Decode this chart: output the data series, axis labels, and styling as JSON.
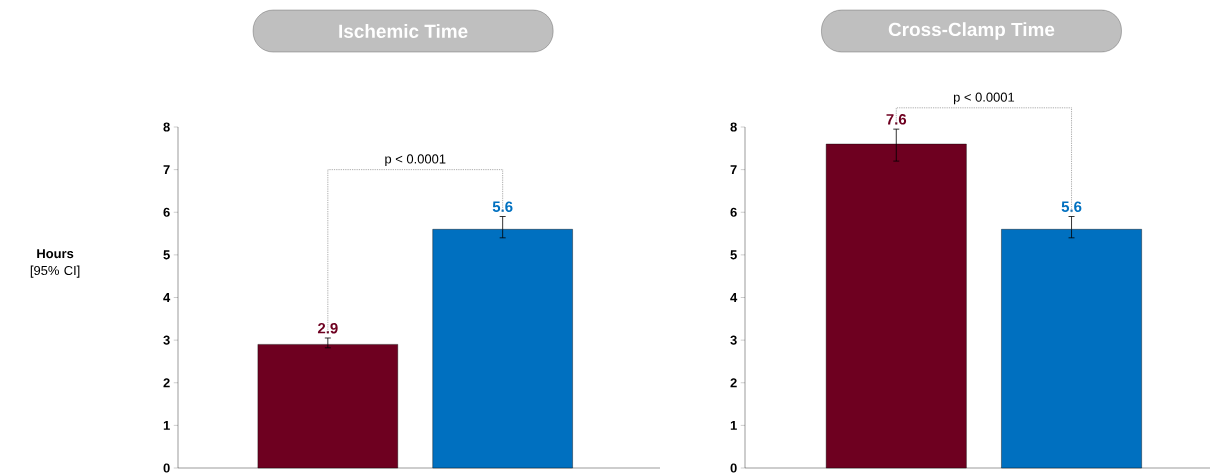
{
  "chart_data": [
    {
      "type": "bar",
      "title": "Ischemic Time",
      "ylabel": "**Hours** [95% CI]",
      "categories": [
        null,
        null
      ],
      "values": [
        2.9,
        5.6
      ],
      "colors": [
        "#6e0020",
        "#0070c0"
      ],
      "errors": [
        [
          2.82,
          3.05
        ],
        [
          5.4,
          5.9
        ]
      ],
      "ylim": [
        0,
        8
      ],
      "yticks": [
        0,
        1,
        2,
        3,
        4,
        5,
        6,
        7,
        8
      ],
      "data_labels": true,
      "annotations": [
        "p < 0.0001"
      ]
    },
    {
      "type": "bar",
      "title": "Cross-Clamp Time",
      "categories": [
        null,
        null
      ],
      "values": [
        7.6,
        5.6
      ],
      "colors": [
        "#6e0020",
        "#0070c0"
      ],
      "errors": [
        [
          7.2,
          7.95
        ],
        [
          5.4,
          5.9
        ]
      ],
      "ylim": [
        0,
        8
      ],
      "yticks": [
        0,
        1,
        2,
        3,
        4,
        5,
        6,
        7,
        8
      ],
      "data_labels": true,
      "annotations": [
        "p < 0.0001"
      ]
    }
  ]
}
